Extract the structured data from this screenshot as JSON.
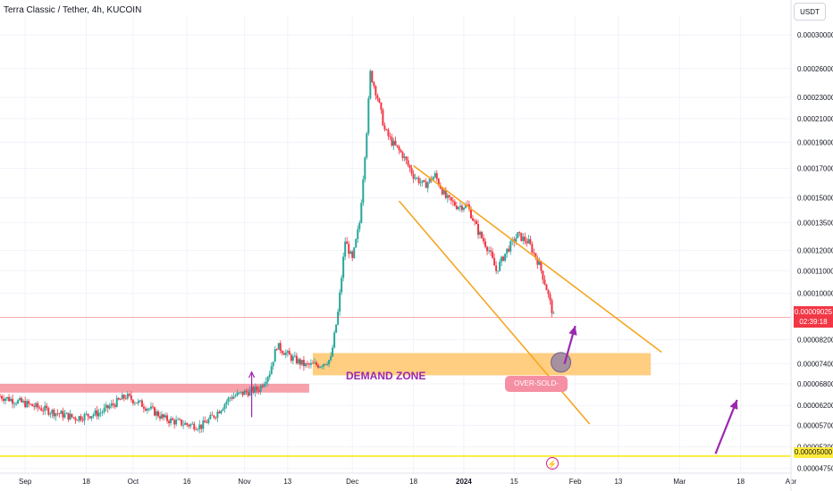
{
  "header": {
    "title": "Terra Classic / Tether, 4h, KUCOIN"
  },
  "currency": {
    "label": "USDT"
  },
  "colors": {
    "up": "#26a69a",
    "down": "#f23645",
    "wedge": "#f5a623",
    "zone_fill": "#ffc56b",
    "resistance_fill": "#f58a95",
    "support_line": "#ffeb3b",
    "arrow": "#9c27b0",
    "price_line": "#f23645",
    "circle": "#8a7ca8"
  },
  "price_tag": {
    "price": "0.00009025",
    "countdown": "02:39:18"
  },
  "support_tag": {
    "price": "0.00005000"
  },
  "annotations": {
    "demand_zone": "DEMAND ZONE",
    "oversold_zone": "OVER-SOLD-ZONE"
  },
  "icons": {
    "bolt": "lightning-icon"
  },
  "chart_data": {
    "type": "candlestick",
    "y_scale": "log",
    "ylim": [
      4.65e-05,
      0.000325
    ],
    "y_ticks": [
      0.0003,
      0.00026,
      0.00023,
      0.00021,
      0.00019,
      0.00017,
      0.00015,
      0.000135,
      0.00012,
      0.00011,
      0.0001,
      8.2e-05,
      7.4e-05,
      6.8e-05,
      6.2e-05,
      5.7e-05,
      5.2e-05,
      4.75e-05
    ],
    "y_tick_labels": [
      "0.00030000",
      "0.00026000",
      "0.00023000",
      "0.00021000",
      "0.00019000",
      "0.00017000",
      "0.00015000",
      "0.00013500",
      "0.00012000",
      "0.00011000",
      "0.00010000",
      "0.00008200",
      "0.00007400",
      "0.00006800",
      "0.00006200",
      "0.00005700",
      "0.00005200",
      "0.00004750"
    ],
    "x_start": "2023-08-25",
    "x_end": "2024-04-01",
    "x_ticks": [
      {
        "date": "2023-09-01",
        "label": "Sep"
      },
      {
        "date": "2023-09-18",
        "label": "18"
      },
      {
        "date": "2023-10-01",
        "label": "Oct"
      },
      {
        "date": "2023-10-16",
        "label": "16"
      },
      {
        "date": "2023-11-01",
        "label": "Nov"
      },
      {
        "date": "2023-11-13",
        "label": "13"
      },
      {
        "date": "2023-12-01",
        "label": "Dec"
      },
      {
        "date": "2023-12-18",
        "label": "18"
      },
      {
        "date": "2024-01-01",
        "label": "2024"
      },
      {
        "date": "2024-01-15",
        "label": "15"
      },
      {
        "date": "2024-02-01",
        "label": "Feb"
      },
      {
        "date": "2024-02-13",
        "label": "13"
      },
      {
        "date": "2024-03-01",
        "label": "Mar"
      },
      {
        "date": "2024-03-18",
        "label": "18"
      },
      {
        "date": "2024-04-01",
        "label": "Apr"
      }
    ],
    "close_path": [
      [
        "2023-08-25",
        6.45e-05
      ],
      [
        "2023-09-01",
        6.25e-05
      ],
      [
        "2023-09-08",
        6.05e-05
      ],
      [
        "2023-09-15",
        5.88e-05
      ],
      [
        "2023-09-22",
        6.02e-05
      ],
      [
        "2023-09-29",
        6.45e-05
      ],
      [
        "2023-10-05",
        6.15e-05
      ],
      [
        "2023-10-10",
        5.85e-05
      ],
      [
        "2023-10-16",
        5.72e-05
      ],
      [
        "2023-10-20",
        5.68e-05
      ],
      [
        "2023-10-24",
        5.98e-05
      ],
      [
        "2023-10-28",
        6.42e-05
      ],
      [
        "2023-11-01",
        6.55e-05
      ],
      [
        "2023-11-05",
        6.65e-05
      ],
      [
        "2023-11-08",
        7.15e-05
      ],
      [
        "2023-11-10",
        8e-05
      ],
      [
        "2023-11-14",
        7.6e-05
      ],
      [
        "2023-11-18",
        7.35e-05
      ],
      [
        "2023-11-22",
        7.38e-05
      ],
      [
        "2023-11-25",
        7.55e-05
      ],
      [
        "2023-11-27",
        9.2e-05
      ],
      [
        "2023-11-29",
        0.000125
      ],
      [
        "2023-12-01",
        0.000115
      ],
      [
        "2023-12-03",
        0.000135
      ],
      [
        "2023-12-05",
        0.0002
      ],
      [
        "2023-12-06",
        0.000255
      ],
      [
        "2023-12-08",
        0.00023
      ],
      [
        "2023-12-10",
        0.0002
      ],
      [
        "2023-12-12",
        0.00019
      ],
      [
        "2023-12-15",
        0.00018
      ],
      [
        "2023-12-18",
        0.000165
      ],
      [
        "2023-12-21",
        0.000158
      ],
      [
        "2023-12-24",
        0.000165
      ],
      [
        "2023-12-27",
        0.00015
      ],
      [
        "2023-12-30",
        0.000145
      ],
      [
        "2024-01-02",
        0.000145
      ],
      [
        "2024-01-05",
        0.00013
      ],
      [
        "2024-01-08",
        0.00012
      ],
      [
        "2024-01-10",
        0.00011
      ],
      [
        "2024-01-13",
        0.00012
      ],
      [
        "2024-01-16",
        0.000128
      ],
      [
        "2024-01-19",
        0.000124
      ],
      [
        "2024-01-22",
        0.000113
      ],
      [
        "2024-01-24",
        0.000102
      ],
      [
        "2024-01-26",
        9.03e-05
      ]
    ],
    "overlays": {
      "demand_zone": {
        "x": [
          "2023-11-20",
          "2024-02-22"
        ],
        "y": [
          7.05e-05,
          7.75e-05
        ]
      },
      "resistance_zone": {
        "x": [
          "2023-08-25",
          "2023-11-19"
        ],
        "y": [
          6.55e-05,
          6.8e-05
        ]
      },
      "wedge_upper": [
        [
          "2023-12-18",
          0.000172
        ],
        [
          "2024-02-25",
          7.78e-05
        ]
      ],
      "wedge_lower": [
        [
          "2023-12-14",
          0.000148
        ],
        [
          "2024-02-05",
          5.73e-05
        ]
      ],
      "support_line": 5e-05,
      "current_price_line": 9.025e-05,
      "oversold_circle": [
        "2024-01-28",
        7.45e-05
      ],
      "arrows": [
        {
          "from": [
            "2023-11-03",
            5.9e-05
          ],
          "to": [
            "2023-11-03",
            7.15e-05
          ]
        },
        {
          "from": [
            "2024-01-29",
            7.4e-05
          ],
          "to": [
            "2024-02-01",
            8.7e-05
          ]
        },
        {
          "from": [
            "2024-03-11",
            5.05e-05
          ],
          "to": [
            "2024-03-17",
            6.35e-05
          ]
        }
      ]
    }
  }
}
